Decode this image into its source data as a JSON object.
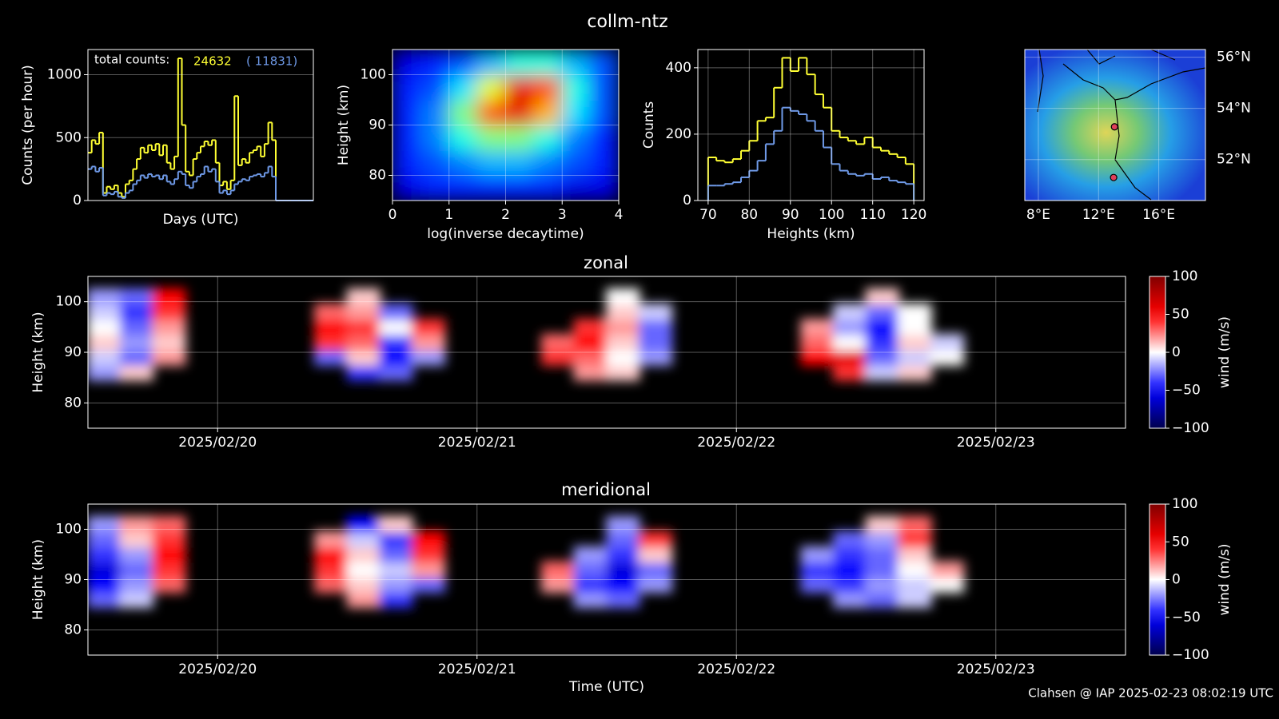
{
  "title": "collm-ntz",
  "footer": "Clahsen @ IAP 2025-02-23 08:02:19 UTC",
  "chart_data": [
    {
      "type": "step",
      "xlabel": "Days (UTC)",
      "ylabel": "Counts (per hour)",
      "ylim": [
        0,
        1200
      ],
      "yticks": [
        0,
        500,
        1000
      ],
      "grid": true,
      "total_text": "total counts:",
      "series": [
        {
          "color": "#ffff33",
          "total": 24632,
          "values": [
            380,
            480,
            450,
            540,
            60,
            110,
            90,
            120,
            60,
            30,
            130,
            160,
            250,
            330,
            420,
            380,
            440,
            400,
            450,
            360,
            440,
            300,
            250,
            350,
            1130,
            600,
            230,
            200,
            330,
            380,
            430,
            470,
            440,
            480,
            300,
            120,
            150,
            90,
            160,
            830,
            280,
            330,
            300,
            380,
            400,
            430,
            350,
            450,
            620,
            480,
            0,
            0,
            0,
            0,
            0,
            0,
            0,
            0,
            0,
            0
          ]
        },
        {
          "color": "#6f9ae8",
          "total": {
            "value": 11831,
            "label": "( 11831)"
          },
          "values": [
            250,
            270,
            230,
            260,
            40,
            60,
            50,
            70,
            30,
            20,
            60,
            80,
            130,
            160,
            200,
            180,
            210,
            190,
            200,
            170,
            200,
            150,
            130,
            170,
            230,
            210,
            120,
            100,
            150,
            190,
            210,
            270,
            230,
            250,
            150,
            60,
            80,
            50,
            80,
            130,
            150,
            170,
            160,
            190,
            200,
            210,
            190,
            220,
            270,
            190,
            0,
            0,
            0,
            0,
            0,
            0,
            0,
            0,
            0,
            0
          ]
        }
      ]
    },
    {
      "type": "heatmap",
      "colormap": "jet",
      "xlabel": "log(inverse decaytime)",
      "ylabel": "Height (km)",
      "xlim": [
        0,
        4
      ],
      "xticks": [
        0,
        1,
        2,
        3,
        4
      ],
      "ylim": [
        75,
        105
      ],
      "yticks": [
        80,
        90,
        100
      ],
      "grid": true,
      "zlim": [
        0,
        1
      ],
      "ybins": [
        75,
        80,
        85,
        90,
        95,
        100,
        105
      ],
      "z": [
        [
          0.1,
          0.15,
          0.15,
          0.15,
          0.15,
          0.15,
          0.1,
          0.1
        ],
        [
          0.15,
          0.2,
          0.25,
          0.3,
          0.3,
          0.25,
          0.2,
          0.15
        ],
        [
          0.15,
          0.25,
          0.4,
          0.5,
          0.5,
          0.4,
          0.25,
          0.15
        ],
        [
          0.15,
          0.25,
          0.5,
          0.8,
          0.9,
          0.7,
          0.35,
          0.2
        ],
        [
          0.15,
          0.2,
          0.35,
          0.6,
          0.9,
          0.8,
          0.4,
          0.2
        ],
        [
          0.1,
          0.15,
          0.2,
          0.3,
          0.4,
          0.4,
          0.3,
          0.2
        ]
      ]
    },
    {
      "type": "histogram",
      "xlabel": "Heights (km)",
      "ylabel": "Counts",
      "xlim": [
        67.5,
        122.5
      ],
      "xticks": [
        70,
        80,
        90,
        100,
        110,
        120
      ],
      "ylim": [
        0,
        455
      ],
      "yticks": [
        0,
        200,
        400
      ],
      "grid": true,
      "bins": [
        70,
        72,
        74,
        76,
        78,
        80,
        82,
        84,
        86,
        88,
        90,
        92,
        94,
        96,
        98,
        100,
        102,
        104,
        106,
        108,
        110,
        112,
        114,
        116,
        118,
        120
      ],
      "series": [
        {
          "color": "#ffff33",
          "values": [
            130,
            120,
            115,
            125,
            150,
            180,
            240,
            250,
            340,
            430,
            390,
            430,
            380,
            320,
            280,
            210,
            190,
            180,
            170,
            190,
            160,
            150,
            140,
            130,
            110
          ]
        },
        {
          "color": "#6f9ae8",
          "values": [
            45,
            45,
            50,
            55,
            70,
            90,
            120,
            170,
            210,
            280,
            270,
            260,
            240,
            210,
            160,
            110,
            90,
            80,
            75,
            80,
            65,
            70,
            60,
            55,
            50
          ]
        }
      ]
    },
    {
      "type": "map",
      "xlim": [
        7.1,
        19.1
      ],
      "ylim": [
        50.4,
        56.3
      ],
      "xticks": [
        {
          "value": 8,
          "label": "8°E"
        },
        {
          "value": 12,
          "label": "12°E"
        },
        {
          "value": 16,
          "label": "16°E"
        }
      ],
      "yticks": [
        {
          "value": 52,
          "label": "52°N"
        },
        {
          "value": 54,
          "label": "54°N"
        },
        {
          "value": 56,
          "label": "56°N"
        }
      ],
      "grid": true,
      "point_color": "#e0405a",
      "points": [
        {
          "lon": 13.06,
          "lat": 53.28
        },
        {
          "lon": 13.0,
          "lat": 51.3
        }
      ]
    },
    {
      "type": "heatmap",
      "colormap": "seismic",
      "title": "zonal",
      "ylabel": "Height (km)",
      "zlabel": "wind (m/s)",
      "xlim": [
        "2025-02-19T12:00",
        "2025-02-23T12:00"
      ],
      "xticks": [
        {
          "value": "2025-02-20",
          "label": "2025/02/20"
        },
        {
          "value": "2025-02-21",
          "label": "2025/02/21"
        },
        {
          "value": "2025-02-22",
          "label": "2025/02/22"
        },
        {
          "value": "2025-02-23",
          "label": "2025/02/23"
        }
      ],
      "ylim": [
        75,
        105
      ],
      "yticks": [
        80,
        90,
        100
      ],
      "grid": true,
      "zlim": [
        -100,
        100
      ],
      "zticks": [
        {
          "value": -100,
          "label": "−100"
        },
        {
          "value": -50,
          "label": "−50"
        },
        0,
        50,
        100
      ],
      "ybins": [
        84.5,
        87.5,
        90.5,
        93.5,
        96.5,
        99.5,
        102.5
      ],
      "z": [
        [
          -20,
          10,
          null,
          null,
          null,
          null,
          null,
          null,
          -40,
          -30,
          null,
          null,
          null,
          null,
          null,
          20,
          10,
          null,
          null,
          null,
          null,
          null,
          null,
          40,
          -10,
          10,
          null,
          null,
          null,
          null,
          null,
          null
        ],
        [
          -10,
          -30,
          20,
          null,
          null,
          null,
          null,
          -30,
          10,
          -50,
          -20,
          null,
          null,
          null,
          40,
          30,
          0,
          -20,
          null,
          null,
          null,
          null,
          50,
          60,
          -30,
          -10,
          0,
          null,
          null,
          null,
          null,
          null
        ],
        [
          10,
          -20,
          10,
          null,
          null,
          null,
          null,
          40,
          30,
          -40,
          20,
          null,
          null,
          null,
          30,
          50,
          10,
          -30,
          null,
          null,
          null,
          null,
          30,
          0,
          -40,
          10,
          -10,
          null,
          null,
          null,
          null,
          null
        ],
        [
          0,
          -30,
          20,
          null,
          null,
          null,
          null,
          50,
          40,
          0,
          40,
          null,
          null,
          null,
          null,
          40,
          20,
          -30,
          null,
          null,
          null,
          null,
          20,
          -20,
          -50,
          0,
          null,
          null,
          null,
          null,
          null,
          null
        ],
        [
          -10,
          -40,
          40,
          null,
          null,
          null,
          null,
          30,
          20,
          -30,
          null,
          null,
          null,
          null,
          null,
          null,
          10,
          -10,
          null,
          null,
          null,
          null,
          null,
          -10,
          -30,
          0,
          null,
          null,
          null,
          null,
          null,
          null
        ],
        [
          -20,
          -30,
          50,
          null,
          null,
          null,
          null,
          null,
          10,
          null,
          null,
          null,
          null,
          null,
          null,
          null,
          0,
          null,
          null,
          null,
          null,
          null,
          null,
          null,
          10,
          null,
          null,
          null,
          null,
          null,
          null,
          null
        ]
      ]
    },
    {
      "type": "heatmap",
      "colormap": "seismic",
      "title": "meridional",
      "xlabel": "Time (UTC)",
      "ylabel": "Height (km)",
      "zlabel": "wind (m/s)",
      "xlim": [
        "2025-02-19T12:00",
        "2025-02-23T12:00"
      ],
      "xticks": [
        {
          "value": "2025-02-20",
          "label": "2025/02/20"
        },
        {
          "value": "2025-02-21",
          "label": "2025/02/21"
        },
        {
          "value": "2025-02-22",
          "label": "2025/02/22"
        },
        {
          "value": "2025-02-23",
          "label": "2025/02/23"
        }
      ],
      "ylim": [
        75,
        105
      ],
      "yticks": [
        80,
        90,
        100
      ],
      "grid": true,
      "zlim": [
        -100,
        100
      ],
      "zticks": [
        {
          "value": -100,
          "label": "−100"
        },
        {
          "value": -50,
          "label": "−50"
        },
        0,
        50,
        100
      ],
      "ybins": [
        84.5,
        87.5,
        90.5,
        93.5,
        96.5,
        99.5,
        102.5
      ],
      "z": [
        [
          -30,
          -10,
          null,
          null,
          null,
          null,
          null,
          null,
          20,
          -40,
          null,
          null,
          null,
          null,
          null,
          -20,
          -30,
          null,
          null,
          null,
          null,
          null,
          null,
          -20,
          -30,
          -10,
          null,
          null,
          null,
          null,
          null,
          null
        ],
        [
          -50,
          -20,
          30,
          null,
          null,
          null,
          null,
          30,
          10,
          -20,
          -30,
          null,
          null,
          null,
          20,
          -40,
          -50,
          -20,
          null,
          null,
          null,
          null,
          -30,
          -40,
          -20,
          -10,
          0,
          null,
          null,
          null,
          null,
          null
        ],
        [
          -60,
          -30,
          40,
          null,
          null,
          null,
          null,
          40,
          0,
          -10,
          20,
          null,
          null,
          null,
          30,
          -30,
          -60,
          -30,
          null,
          null,
          null,
          null,
          -40,
          -50,
          -30,
          0,
          20,
          null,
          null,
          null,
          null,
          null
        ],
        [
          -40,
          -20,
          50,
          null,
          null,
          null,
          null,
          50,
          10,
          -30,
          40,
          null,
          null,
          null,
          null,
          -20,
          -40,
          10,
          null,
          null,
          null,
          null,
          -20,
          -40,
          -30,
          10,
          null,
          null,
          null,
          null,
          null,
          null
        ],
        [
          -30,
          10,
          40,
          null,
          null,
          null,
          null,
          20,
          -10,
          -40,
          50,
          null,
          null,
          null,
          null,
          null,
          -30,
          40,
          null,
          null,
          null,
          null,
          null,
          -30,
          -20,
          40,
          null,
          null,
          null,
          null,
          null,
          null
        ],
        [
          -20,
          20,
          30,
          null,
          null,
          null,
          null,
          null,
          -50,
          10,
          null,
          null,
          null,
          null,
          null,
          null,
          -20,
          null,
          null,
          null,
          null,
          null,
          null,
          null,
          10,
          30,
          null,
          null,
          null,
          null,
          null,
          null
        ]
      ]
    }
  ]
}
